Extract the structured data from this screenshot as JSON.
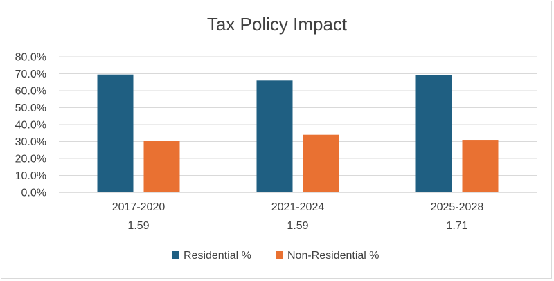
{
  "chart_data": {
    "type": "bar",
    "title": "Tax Policy Impact",
    "categories": [
      "2017-2020",
      "2021-2024",
      "2025-2028"
    ],
    "category_sublabels": [
      "1.59",
      "1.59",
      "1.71"
    ],
    "series": [
      {
        "name": "Residential %",
        "values": [
          69.5,
          66.0,
          69.0
        ],
        "color": "#1f5f82"
      },
      {
        "name": "Non-Residential %",
        "values": [
          30.5,
          34.0,
          31.0
        ],
        "color": "#e97132"
      }
    ],
    "y_ticks": [
      "0.0%",
      "10.0%",
      "20.0%",
      "30.0%",
      "40.0%",
      "50.0%",
      "60.0%",
      "70.0%",
      "80.0%"
    ],
    "ylim": [
      0,
      80
    ],
    "grid": true,
    "legend_position": "bottom"
  }
}
